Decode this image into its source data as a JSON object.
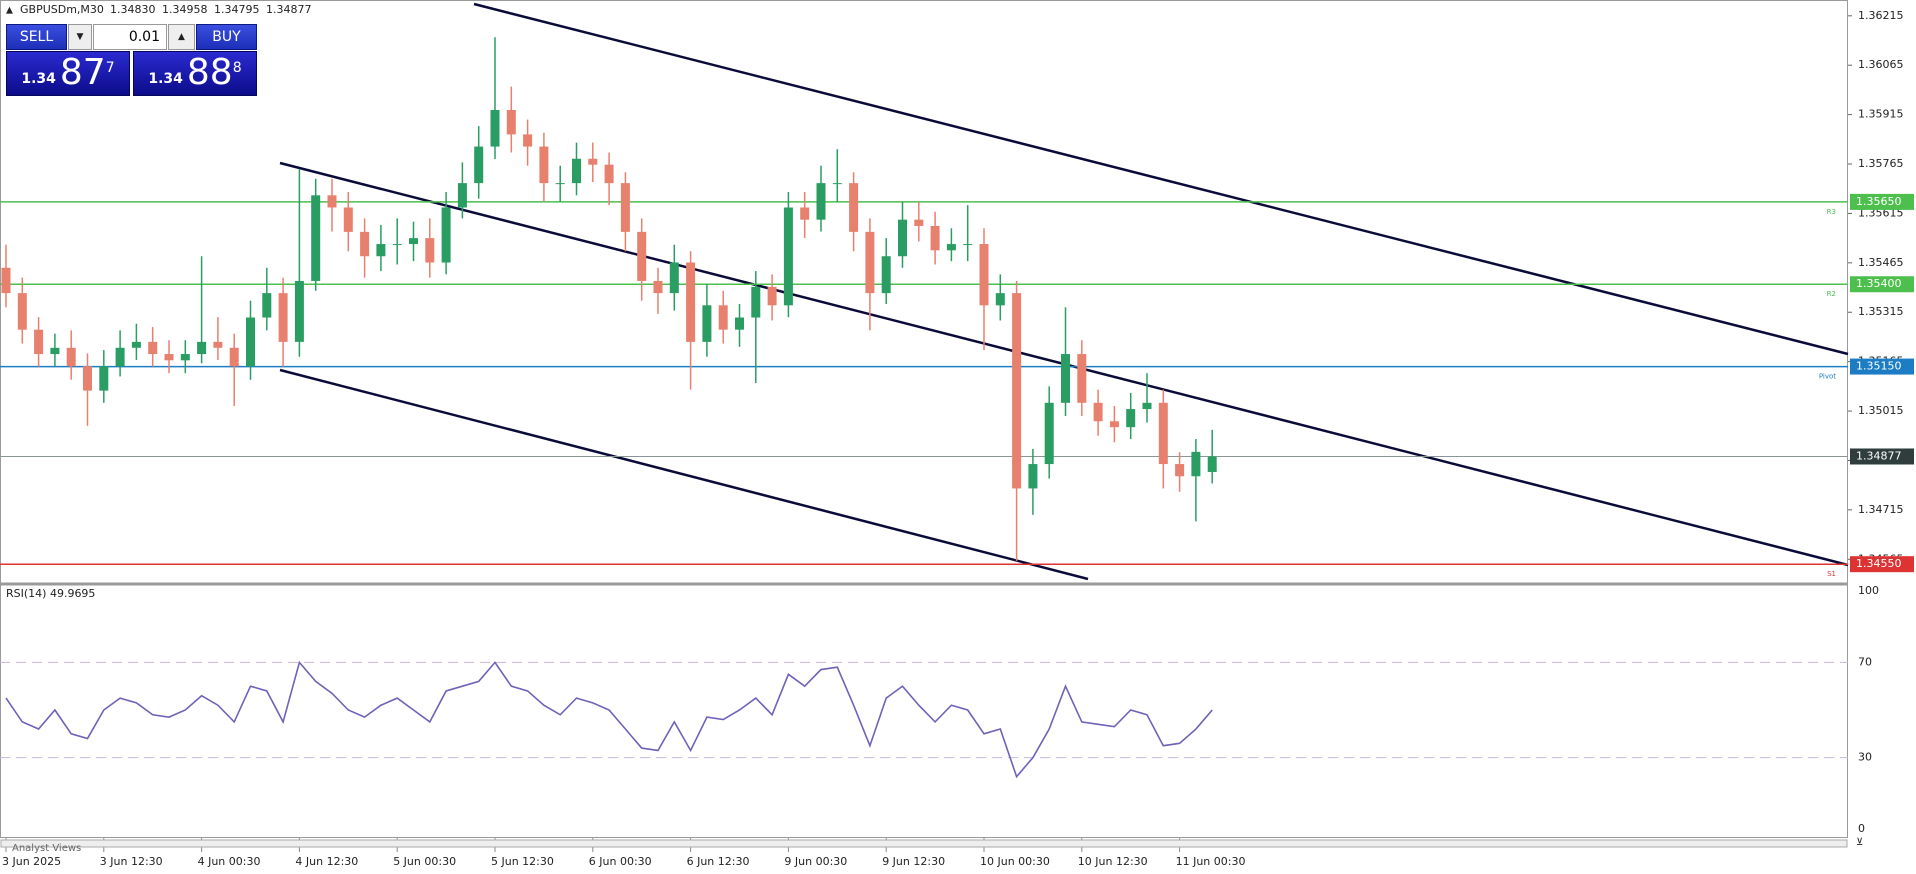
{
  "header": {
    "symbol": "GBPUSDm,M30"
  },
  "trade_panel": {
    "sell": "SELL",
    "buy": "BUY",
    "lot": "0.01",
    "bid": [
      "1.34",
      "87",
      "7"
    ],
    "ask": [
      "1.34",
      "88",
      "8"
    ]
  },
  "tabs": [
    "Analyst Views"
  ],
  "chart_data": [
    {
      "type": "candlestick",
      "ohlc_labels": [
        "1.34830",
        "1.34958",
        "1.34795",
        "1.34877"
      ],
      "categories": [
        "3 Jun 2025",
        null,
        null,
        null,
        null,
        null,
        "3 Jun 12:30",
        null,
        null,
        null,
        null,
        null,
        "4 Jun 00:30",
        null,
        null,
        null,
        null,
        null,
        "4 Jun 12:30",
        null,
        null,
        null,
        null,
        null,
        "5 Jun 00:30",
        null,
        null,
        null,
        null,
        null,
        "5 Jun 12:30",
        null,
        null,
        null,
        null,
        null,
        "6 Jun 00:30",
        null,
        null,
        null,
        null,
        null,
        "6 Jun 12:30",
        null,
        null,
        null,
        null,
        null,
        "9 Jun 00:30",
        null,
        null,
        null,
        null,
        null,
        "9 Jun 12:30",
        null,
        null,
        null,
        null,
        null,
        "10 Jun 00:30",
        null,
        null,
        null,
        null,
        null,
        "10 Jun 12:30",
        null,
        null,
        null,
        null,
        null,
        "11 Jun 00:30",
        null,
        null
      ],
      "open": [
        1.3545,
        1.35373,
        1.35262,
        1.35188,
        1.35207,
        1.35151,
        1.35077,
        1.35151,
        1.35207,
        1.35225,
        1.35188,
        1.35169,
        1.35188,
        1.35225,
        1.35207,
        1.35151,
        1.35299,
        1.35373,
        1.35225,
        1.3541,
        1.3567,
        1.35633,
        1.35559,
        1.35485,
        1.35522,
        1.35522,
        1.3554,
        1.35466,
        1.35633,
        1.35707,
        1.35818,
        1.35929,
        1.35855,
        1.35818,
        1.35707,
        1.35707,
        1.35781,
        1.35763,
        1.35707,
        1.35559,
        1.3541,
        1.35373,
        1.35466,
        1.35225,
        1.35336,
        1.35262,
        1.35299,
        1.35392,
        1.35336,
        1.35633,
        1.35596,
        1.35707,
        1.35707,
        1.35559,
        1.35373,
        1.35485,
        1.35596,
        1.35577,
        1.35503,
        1.35522,
        1.35522,
        1.35336,
        1.35373,
        1.3478,
        1.34854,
        1.3504,
        1.35188,
        1.3504,
        1.34984,
        1.34966,
        1.35021,
        1.3504,
        1.34854,
        1.34817,
        1.3483
      ],
      "high": [
        1.3552,
        1.3542,
        1.353,
        1.3525,
        1.3526,
        1.3519,
        1.352,
        1.3526,
        1.3528,
        1.3527,
        1.3523,
        1.3523,
        1.35485,
        1.353,
        1.3525,
        1.3535,
        1.3545,
        1.3542,
        1.3575,
        1.3572,
        1.3572,
        1.3568,
        1.356,
        1.3558,
        1.356,
        1.3559,
        1.356,
        1.3568,
        1.3577,
        1.3588,
        1.3615,
        1.36,
        1.359,
        1.3586,
        1.3576,
        1.3583,
        1.3583,
        1.358,
        1.3574,
        1.356,
        1.3545,
        1.3552,
        1.355,
        1.354,
        1.3538,
        1.3534,
        1.3544,
        1.3543,
        1.3568,
        1.3568,
        1.3576,
        1.3581,
        1.3574,
        1.356,
        1.3554,
        1.3565,
        1.3565,
        1.3562,
        1.3557,
        1.3564,
        1.3557,
        1.3543,
        1.3541,
        1.349,
        1.3509,
        1.3533,
        1.3523,
        1.3508,
        1.3503,
        1.3507,
        1.3513,
        1.3508,
        1.3489,
        1.3493,
        1.34958
      ],
      "low": [
        1.3533,
        1.3522,
        1.3515,
        1.3515,
        1.3511,
        1.3497,
        1.3504,
        1.3512,
        1.3517,
        1.3515,
        1.3513,
        1.3513,
        1.3516,
        1.3517,
        1.3503,
        1.3511,
        1.3526,
        1.3515,
        1.3518,
        1.3538,
        1.3556,
        1.355,
        1.3542,
        1.3544,
        1.3546,
        1.3547,
        1.3542,
        1.3543,
        1.356,
        1.3566,
        1.3578,
        1.358,
        1.3576,
        1.3565,
        1.3565,
        1.3567,
        1.3571,
        1.3564,
        1.355,
        1.3535,
        1.3531,
        1.3532,
        1.3508,
        1.3518,
        1.3522,
        1.3521,
        1.351,
        1.3529,
        1.353,
        1.3554,
        1.3556,
        1.3565,
        1.355,
        1.3526,
        1.3534,
        1.3545,
        1.3553,
        1.3546,
        1.3547,
        1.3547,
        1.352,
        1.3529,
        1.3456,
        1.347,
        1.3481,
        1.35,
        1.35,
        1.3494,
        1.3492,
        1.3493,
        1.3498,
        1.3478,
        1.3477,
        1.3468,
        1.34795
      ],
      "close": [
        1.35373,
        1.35262,
        1.35188,
        1.35207,
        1.35151,
        1.35077,
        1.35151,
        1.35207,
        1.35225,
        1.35188,
        1.35169,
        1.35188,
        1.35225,
        1.35207,
        1.35151,
        1.35299,
        1.35373,
        1.35225,
        1.3541,
        1.3567,
        1.35633,
        1.35559,
        1.35485,
        1.35522,
        1.35522,
        1.3554,
        1.35466,
        1.35633,
        1.35707,
        1.35818,
        1.35929,
        1.35855,
        1.35818,
        1.35707,
        1.35707,
        1.35781,
        1.35763,
        1.35707,
        1.35559,
        1.3541,
        1.35373,
        1.35466,
        1.35225,
        1.35336,
        1.35262,
        1.35299,
        1.35392,
        1.35336,
        1.35633,
        1.35596,
        1.35707,
        1.35707,
        1.35559,
        1.35373,
        1.35485,
        1.35596,
        1.35577,
        1.35503,
        1.35522,
        1.35522,
        1.35336,
        1.35373,
        1.3478,
        1.34854,
        1.3504,
        1.35188,
        1.3504,
        1.34984,
        1.34966,
        1.35021,
        1.3504,
        1.34854,
        1.34817,
        1.34891,
        1.34877
      ],
      "up_color": "#2a9d63",
      "down_color": "#e8806e",
      "ylim": [
        1.34502,
        1.36263
      ],
      "yticks": [
        1.34565,
        1.34715,
        1.34865,
        1.35015,
        1.35165,
        1.35315,
        1.35465,
        1.35615,
        1.35765,
        1.35915,
        1.36065,
        1.36215
      ],
      "levels": [
        {
          "name": "R3",
          "value": 1.3565,
          "label": "1.35650",
          "color": "#4cbf4c"
        },
        {
          "name": "R2",
          "value": 1.354,
          "label": "1.35400",
          "color": "#4cbf4c"
        },
        {
          "name": "Pivot",
          "value": 1.3515,
          "label": "1.35150",
          "color": "#1c7cc4"
        },
        {
          "name": "S1",
          "value": 1.3455,
          "label": "1.34550",
          "color": "#dd3333"
        }
      ],
      "current": {
        "value": 1.34877,
        "label": "1.34877",
        "color": "#2f3d3d"
      }
    },
    {
      "type": "line",
      "title": "RSI(14) 49.9695",
      "color": "#6f62b8",
      "values": [
        55,
        45,
        42,
        50,
        40,
        38,
        50,
        55,
        53,
        48,
        47,
        50,
        56,
        52,
        45,
        60,
        58,
        45,
        70,
        62,
        57,
        50,
        47,
        52,
        55,
        50,
        45,
        58,
        60,
        62,
        70,
        60,
        58,
        52,
        48,
        55,
        53,
        50,
        42,
        34,
        33,
        45,
        33,
        47,
        46,
        50,
        55,
        48,
        65,
        60,
        67,
        68,
        52,
        35,
        55,
        60,
        52,
        45,
        52,
        50,
        40,
        42,
        22,
        30,
        42,
        60,
        45,
        44,
        43,
        50,
        48,
        35,
        36,
        42,
        49.9695
      ],
      "ylim": [
        0,
        100
      ],
      "yticks": [
        0,
        30,
        70,
        100
      ]
    }
  ]
}
